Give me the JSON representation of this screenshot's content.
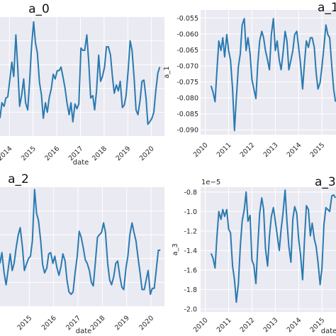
{
  "colors": {
    "line": "#2a7ab0",
    "plot_background": "#eaeaf2",
    "grid": "#ffffff"
  },
  "chart_data": [
    {
      "type": "line",
      "title": "a_0",
      "xlabel": "date",
      "ylabel": "",
      "x_ticks": [
        "2014",
        "2015",
        "2016",
        "2017",
        "2018",
        "2019",
        "2020"
      ],
      "y_ticks": [],
      "xlim": [
        2013.6,
        2020.55
      ],
      "ylim": [
        0,
        1
      ],
      "x": [
        2013.6,
        2013.68,
        2013.77,
        2013.85,
        2013.93,
        2014.02,
        2014.1,
        2014.18,
        2014.27,
        2014.35,
        2014.43,
        2014.52,
        2014.6,
        2014.68,
        2014.77,
        2014.85,
        2014.93,
        2015.02,
        2015.1,
        2015.18,
        2015.27,
        2015.35,
        2015.43,
        2015.52,
        2015.6,
        2015.68,
        2015.77,
        2015.85,
        2015.93,
        2016.02,
        2016.1,
        2016.18,
        2016.27,
        2016.35,
        2016.43,
        2016.52,
        2016.6,
        2016.68,
        2016.77,
        2016.85,
        2016.93,
        2017.02,
        2017.1,
        2017.18,
        2017.27,
        2017.35,
        2017.43,
        2017.52,
        2017.6,
        2017.68,
        2017.77,
        2017.85,
        2017.93,
        2018.02,
        2018.1,
        2018.18,
        2018.27,
        2018.35,
        2018.43,
        2018.52,
        2018.6,
        2018.68,
        2018.77,
        2018.85,
        2018.93,
        2019.02,
        2019.1,
        2019.18,
        2019.27,
        2019.35,
        2019.43,
        2019.52,
        2019.6,
        2019.68,
        2019.77,
        2019.85,
        2019.93,
        2020.02,
        2020.1,
        2020.18,
        2020.27,
        2020.35
      ],
      "y": [
        0.15,
        0.28,
        0.25,
        0.32,
        0.33,
        0.48,
        0.62,
        0.5,
        0.85,
        0.58,
        0.25,
        0.35,
        0.48,
        0.28,
        0.22,
        0.45,
        0.74,
        0.96,
        0.78,
        0.7,
        0.45,
        0.35,
        0.15,
        0.28,
        0.2,
        0.32,
        0.4,
        0.52,
        0.48,
        0.55,
        0.55,
        0.58,
        0.49,
        0.4,
        0.28,
        0.18,
        0.28,
        0.12,
        0.27,
        0.23,
        0.27,
        0.74,
        0.72,
        0.72,
        0.85,
        0.62,
        0.32,
        0.34,
        0.22,
        0.38,
        0.68,
        0.46,
        0.5,
        0.58,
        0.75,
        0.75,
        0.68,
        0.5,
        0.36,
        0.43,
        0.38,
        0.46,
        0.24,
        0.26,
        0.34,
        0.56,
        0.8,
        0.72,
        0.48,
        0.22,
        0.18,
        0.3,
        0.46,
        0.47,
        0.32,
        0.1,
        0.12,
        0.15,
        0.2,
        0.37,
        0.53,
        0.58
      ]
    },
    {
      "type": "line",
      "title": "a_1",
      "xlabel": "",
      "ylabel": "a_1",
      "x_ticks": [
        "2010",
        "2011",
        "2012",
        "2013",
        "2014",
        "2015"
      ],
      "y_ticks": [
        "-0.055",
        "-0.060",
        "-0.065",
        "-0.070",
        "-0.075",
        "-0.080",
        "-0.085",
        "-0.090"
      ],
      "xlim": [
        2009.8,
        2015.6
      ],
      "ylim": [
        -0.0915,
        -0.0525
      ],
      "x": [
        2010.25,
        2010.33,
        2010.42,
        2010.5,
        2010.58,
        2010.67,
        2010.75,
        2010.83,
        2010.92,
        2011.0,
        2011.08,
        2011.17,
        2011.25,
        2011.33,
        2011.42,
        2011.5,
        2011.58,
        2011.67,
        2011.75,
        2011.83,
        2011.92,
        2012.0,
        2012.08,
        2012.17,
        2012.25,
        2012.33,
        2012.42,
        2012.5,
        2012.58,
        2012.67,
        2012.75,
        2012.83,
        2012.92,
        2013.0,
        2013.08,
        2013.17,
        2013.25,
        2013.33,
        2013.42,
        2013.5,
        2013.58,
        2013.67,
        2013.75,
        2013.83,
        2013.92,
        2014.0,
        2014.08,
        2014.17,
        2014.25,
        2014.33,
        2014.42,
        2014.5,
        2014.58,
        2014.67,
        2014.75,
        2014.83,
        2014.92,
        2015.0,
        2015.08,
        2015.17,
        2015.25,
        2015.33,
        2015.42,
        2015.5,
        2015.58
      ],
      "y": [
        -0.0762,
        -0.0782,
        -0.0812,
        -0.0712,
        -0.0622,
        -0.0652,
        -0.0612,
        -0.0672,
        -0.0602,
        -0.0652,
        -0.0682,
        -0.0772,
        -0.0902,
        -0.0802,
        -0.0702,
        -0.0662,
        -0.0572,
        -0.0552,
        -0.0652,
        -0.0612,
        -0.0662,
        -0.0742,
        -0.0772,
        -0.0802,
        -0.0692,
        -0.0622,
        -0.0592,
        -0.0612,
        -0.0652,
        -0.0682,
        -0.0712,
        -0.0602,
        -0.0552,
        -0.0652,
        -0.0622,
        -0.0682,
        -0.0712,
        -0.0662,
        -0.0592,
        -0.0622,
        -0.0712,
        -0.0682,
        -0.0652,
        -0.0602,
        -0.0592,
        -0.0642,
        -0.0692,
        -0.0772,
        -0.0692,
        -0.0622,
        -0.0642,
        -0.0612,
        -0.0612,
        -0.0642,
        -0.0722,
        -0.0772,
        -0.0752,
        -0.0702,
        -0.0642,
        -0.0572,
        -0.0602,
        -0.0612,
        -0.0702,
        -0.0772,
        -0.0812
      ]
    },
    {
      "type": "line",
      "title": "a_2",
      "xlabel": "date",
      "ylabel": "",
      "x_ticks": [
        "2015",
        "2016",
        "2017",
        "2018",
        "2019",
        "2020"
      ],
      "y_ticks": [],
      "xlim": [
        2013.8,
        2020.55
      ],
      "ylim": [
        0,
        1
      ],
      "x": [
        2013.8,
        2013.88,
        2013.97,
        2014.05,
        2014.13,
        2014.22,
        2014.3,
        2014.38,
        2014.47,
        2014.55,
        2014.63,
        2014.72,
        2014.8,
        2014.88,
        2014.97,
        2015.05,
        2015.13,
        2015.22,
        2015.3,
        2015.38,
        2015.47,
        2015.55,
        2015.63,
        2015.72,
        2015.8,
        2015.88,
        2015.97,
        2016.05,
        2016.13,
        2016.22,
        2016.3,
        2016.38,
        2016.47,
        2016.55,
        2016.63,
        2016.72,
        2016.8,
        2016.88,
        2016.97,
        2017.05,
        2017.13,
        2017.22,
        2017.3,
        2017.38,
        2017.47,
        2017.55,
        2017.63,
        2017.72,
        2017.8,
        2017.88,
        2017.97,
        2018.05,
        2018.13,
        2018.22,
        2018.3,
        2018.38,
        2018.47,
        2018.55,
        2018.63,
        2018.72,
        2018.8,
        2018.88,
        2018.97,
        2019.05,
        2019.13,
        2019.22,
        2019.3,
        2019.38,
        2019.47,
        2019.55,
        2019.63,
        2019.72,
        2019.8,
        2019.88,
        2019.97,
        2020.05,
        2020.13,
        2020.22,
        2020.3,
        2020.38
      ],
      "y": [
        0.36,
        0.45,
        0.28,
        0.18,
        0.3,
        0.44,
        0.3,
        0.36,
        0.5,
        0.6,
        0.66,
        0.5,
        0.3,
        0.35,
        0.4,
        0.42,
        0.55,
        0.98,
        0.78,
        0.72,
        0.55,
        0.35,
        0.28,
        0.32,
        0.44,
        0.45,
        0.36,
        0.42,
        0.33,
        0.26,
        0.33,
        0.44,
        0.38,
        0.22,
        0.12,
        0.1,
        0.12,
        0.28,
        0.42,
        0.63,
        0.58,
        0.49,
        0.39,
        0.36,
        0.3,
        0.2,
        0.17,
        0.38,
        0.58,
        0.6,
        0.62,
        0.7,
        0.62,
        0.36,
        0.22,
        0.18,
        0.25,
        0.36,
        0.38,
        0.25,
        0.16,
        0.14,
        0.32,
        0.42,
        0.6,
        0.7,
        0.62,
        0.55,
        0.4,
        0.28,
        0.14,
        0.14,
        0.22,
        0.3,
        0.1,
        0.15,
        0.15,
        0.32,
        0.47,
        0.47
      ]
    },
    {
      "type": "line",
      "title": "a_3",
      "xlabel": "date",
      "ylabel": "a_3",
      "axis_offset_label": "1e−5",
      "x_ticks": [
        "2010",
        "2011",
        "2012",
        "2013",
        "2014",
        "2015"
      ],
      "y_ticks": [
        "-0.8",
        "-1.0",
        "-1.2",
        "-1.4",
        "-1.6",
        "-1.8",
        "-2.0"
      ],
      "xlim": [
        2009.8,
        2015.6
      ],
      "ylim": [
        -2.03,
        -0.75
      ],
      "x": [
        2010.25,
        2010.33,
        2010.42,
        2010.5,
        2010.58,
        2010.67,
        2010.75,
        2010.83,
        2010.92,
        2011.0,
        2011.08,
        2011.17,
        2011.25,
        2011.33,
        2011.42,
        2011.5,
        2011.58,
        2011.67,
        2011.75,
        2011.83,
        2011.92,
        2012.0,
        2012.08,
        2012.17,
        2012.25,
        2012.33,
        2012.42,
        2012.5,
        2012.58,
        2012.67,
        2012.75,
        2012.83,
        2012.92,
        2013.0,
        2013.08,
        2013.17,
        2013.25,
        2013.33,
        2013.42,
        2013.5,
        2013.58,
        2013.67,
        2013.75,
        2013.83,
        2013.92,
        2014.0,
        2014.08,
        2014.17,
        2014.25,
        2014.33,
        2014.42,
        2014.5,
        2014.58,
        2014.67,
        2014.75,
        2014.83,
        2014.92,
        2015.0,
        2015.08,
        2015.17,
        2015.25,
        2015.33,
        2015.42,
        2015.5,
        2015.58
      ],
      "y": [
        -1.43,
        -1.48,
        -1.58,
        -1.25,
        -1.0,
        -1.08,
        -0.98,
        -1.05,
        -0.98,
        -1.18,
        -1.22,
        -1.56,
        -1.7,
        -1.93,
        -1.74,
        -1.36,
        -1.1,
        -0.98,
        -0.8,
        -1.1,
        -1.04,
        -1.5,
        -1.55,
        -1.74,
        -1.35,
        -1.02,
        -0.86,
        -0.98,
        -1.38,
        -1.56,
        -1.25,
        -1.05,
        -0.96,
        -1.1,
        -1.24,
        -1.4,
        -1.18,
        -1.02,
        -0.78,
        -1.1,
        -1.36,
        -1.52,
        -1.08,
        -0.95,
        -1.02,
        -1.28,
        -1.44,
        -1.7,
        -1.3,
        -0.94,
        -0.98,
        -1.25,
        -1.12,
        -1.28,
        -1.36,
        -1.52,
        -1.75,
        -1.58,
        -1.14,
        -0.96,
        -0.98,
        -1.0,
        -0.84,
        -0.83,
        -0.86
      ]
    }
  ]
}
